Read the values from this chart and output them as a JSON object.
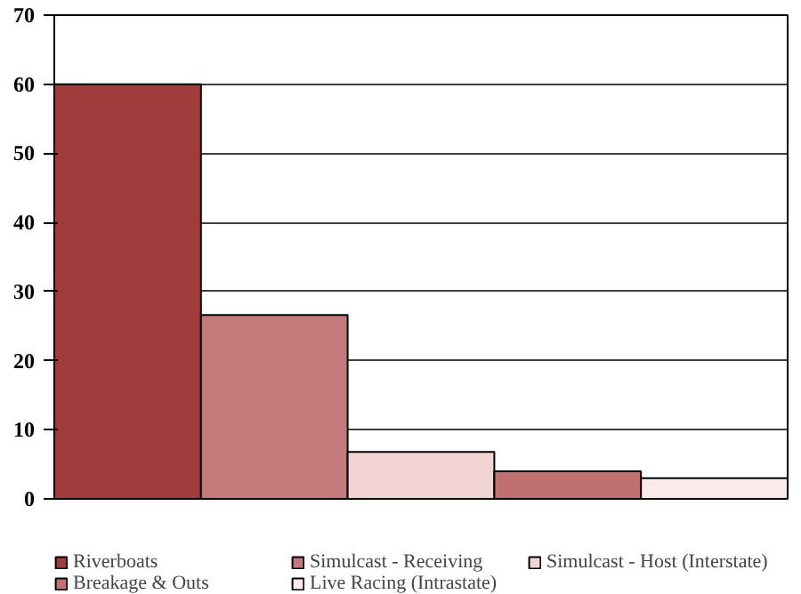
{
  "chart_data": {
    "type": "bar",
    "categories": [
      null,
      null,
      null,
      null,
      null
    ],
    "series": [
      {
        "name": "Riverboats",
        "color": "#a03c3c",
        "values": [
          60,
          null,
          null,
          null,
          null
        ]
      },
      {
        "name": "Simulcast - Receiving",
        "color": "#c47a7a",
        "values": [
          null,
          26.6,
          null,
          null,
          null
        ]
      },
      {
        "name": "Simulcast - Host (Interstate)",
        "color": "#f2d4d4",
        "values": [
          null,
          null,
          6.8,
          null,
          null
        ]
      },
      {
        "name": "Breakage & Outs",
        "color": "#c07070",
        "values": [
          null,
          null,
          null,
          4.0,
          null
        ]
      },
      {
        "name": "Live Racing (Intrastate)",
        "color": "#faeaea",
        "values": [
          null,
          null,
          null,
          null,
          3.0
        ]
      }
    ],
    "ylim": [
      0,
      70
    ],
    "yticks": [
      0,
      10,
      20,
      30,
      40,
      50,
      60,
      70
    ],
    "grid": "y",
    "legend": "bottom"
  }
}
